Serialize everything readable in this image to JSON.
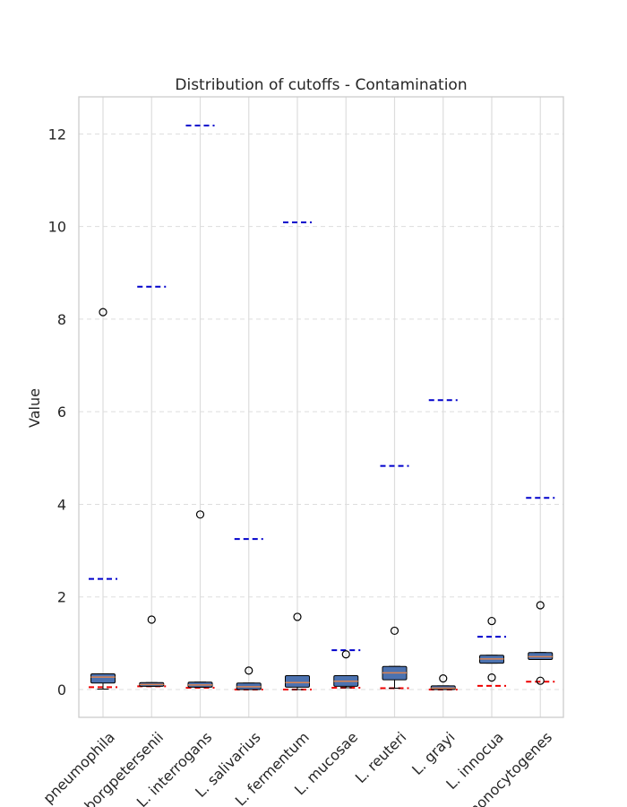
{
  "chart_data": {
    "type": "box",
    "title": "Distribution of cutoffs - Contamination",
    "xlabel": "",
    "ylabel": "Value",
    "ylim": [
      -0.6,
      12.8
    ],
    "yticks": [
      0,
      2,
      4,
      6,
      8,
      10,
      12
    ],
    "grid": true,
    "categories": [
      "L. pneumophila",
      "L. borgpetersenii",
      "L. interrogans",
      "L. salivarius",
      "L. fermentum",
      "L. mucosae",
      "L. reuteri",
      "L. grayi",
      "L. innocua",
      "L. monocytogenes"
    ],
    "boxes": [
      {
        "q1": 0.14,
        "median": 0.27,
        "q3": 0.34,
        "whisker_low": 0.01,
        "whisker_high": 0.34,
        "outliers": [
          8.15
        ],
        "upper_line": 2.39,
        "lower_line": 0.05
      },
      {
        "q1": 0.07,
        "median": 0.11,
        "q3": 0.15,
        "whisker_low": 0.07,
        "whisker_high": 0.15,
        "outliers": [
          1.51
        ],
        "upper_line": 8.7,
        "lower_line": 0.07
      },
      {
        "q1": 0.05,
        "median": 0.1,
        "q3": 0.16,
        "whisker_low": 0.05,
        "whisker_high": 0.16,
        "outliers": [
          3.78
        ],
        "upper_line": 12.18,
        "lower_line": 0.04
      },
      {
        "q1": 0.0,
        "median": 0.06,
        "q3": 0.14,
        "whisker_low": 0.0,
        "whisker_high": 0.14,
        "outliers": [
          0.41
        ],
        "upper_line": 3.25,
        "lower_line": 0.0
      },
      {
        "q1": 0.05,
        "median": 0.15,
        "q3": 0.3,
        "whisker_low": 0.0,
        "whisker_high": 0.3,
        "outliers": [
          1.57
        ],
        "upper_line": 10.09,
        "lower_line": 0.0
      },
      {
        "q1": 0.07,
        "median": 0.18,
        "q3": 0.3,
        "whisker_low": 0.04,
        "whisker_high": 0.3,
        "outliers": [
          0.76
        ],
        "upper_line": 0.85,
        "lower_line": 0.04
      },
      {
        "q1": 0.21,
        "median": 0.36,
        "q3": 0.5,
        "whisker_low": 0.03,
        "whisker_high": 0.5,
        "outliers": [
          1.27
        ],
        "upper_line": 4.83,
        "lower_line": 0.03
      },
      {
        "q1": 0.0,
        "median": 0.03,
        "q3": 0.08,
        "whisker_low": 0.0,
        "whisker_high": 0.08,
        "outliers": [
          0.24
        ],
        "upper_line": 6.25,
        "lower_line": 0.0
      },
      {
        "q1": 0.57,
        "median": 0.66,
        "q3": 0.74,
        "whisker_low": 0.57,
        "whisker_high": 0.74,
        "outliers": [
          1.48,
          0.26
        ],
        "upper_line": 1.14,
        "lower_line": 0.08
      },
      {
        "q1": 0.65,
        "median": 0.71,
        "q3": 0.8,
        "whisker_low": 0.65,
        "whisker_high": 0.8,
        "outliers": [
          1.82,
          0.19
        ],
        "upper_line": 4.14,
        "lower_line": 0.17
      }
    ],
    "colors": {
      "box_fill": "#4c72b0",
      "median": "#dd8452",
      "upper_line": "#0000cc",
      "lower_line": "#ee0000",
      "grid": "#dddddd",
      "axes_border": "#cccccc",
      "text": "#262626"
    }
  }
}
